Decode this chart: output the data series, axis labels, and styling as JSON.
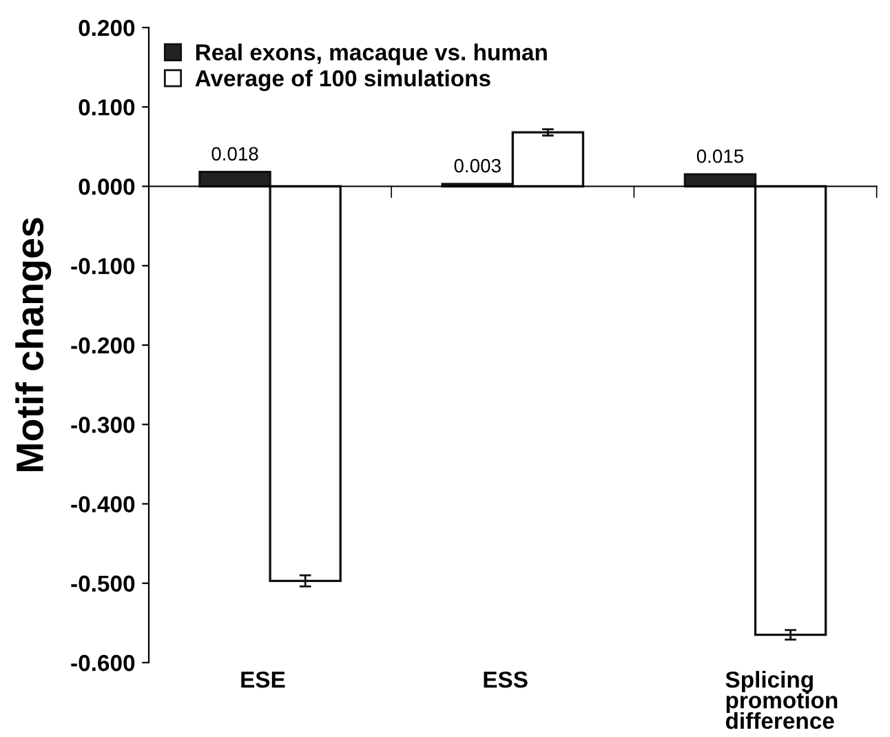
{
  "chart_data": {
    "type": "bar",
    "ylabel": "Motif changes",
    "categories": [
      "ESE",
      "ESS",
      "Splicing\npromotion\ndifference"
    ],
    "series": [
      {
        "name": "Real exons, macaque vs. human",
        "color": "#222222",
        "values": [
          0.018,
          0.003,
          0.015
        ],
        "value_labels": [
          "0.018",
          "0.003",
          "0.015"
        ]
      },
      {
        "name": "Average of 100 simulations",
        "color": "#ffffff",
        "values": [
          -0.497,
          0.068,
          -0.565
        ],
        "errors": [
          0.007,
          0.004,
          0.006
        ]
      }
    ],
    "ylim": [
      -0.6,
      0.2
    ],
    "yticks": [
      {
        "value": -0.6,
        "label": "-0.600"
      },
      {
        "value": -0.5,
        "label": "-0.500"
      },
      {
        "value": -0.4,
        "label": "-0.400"
      },
      {
        "value": -0.3,
        "label": "-0.300"
      },
      {
        "value": -0.2,
        "label": "-0.200"
      },
      {
        "value": -0.1,
        "label": "-0.100"
      },
      {
        "value": 0,
        "label": "0.000"
      },
      {
        "value": 0.1,
        "label": "0.100"
      },
      {
        "value": 0.2,
        "label": "0.200"
      }
    ],
    "legend": "top left"
  }
}
